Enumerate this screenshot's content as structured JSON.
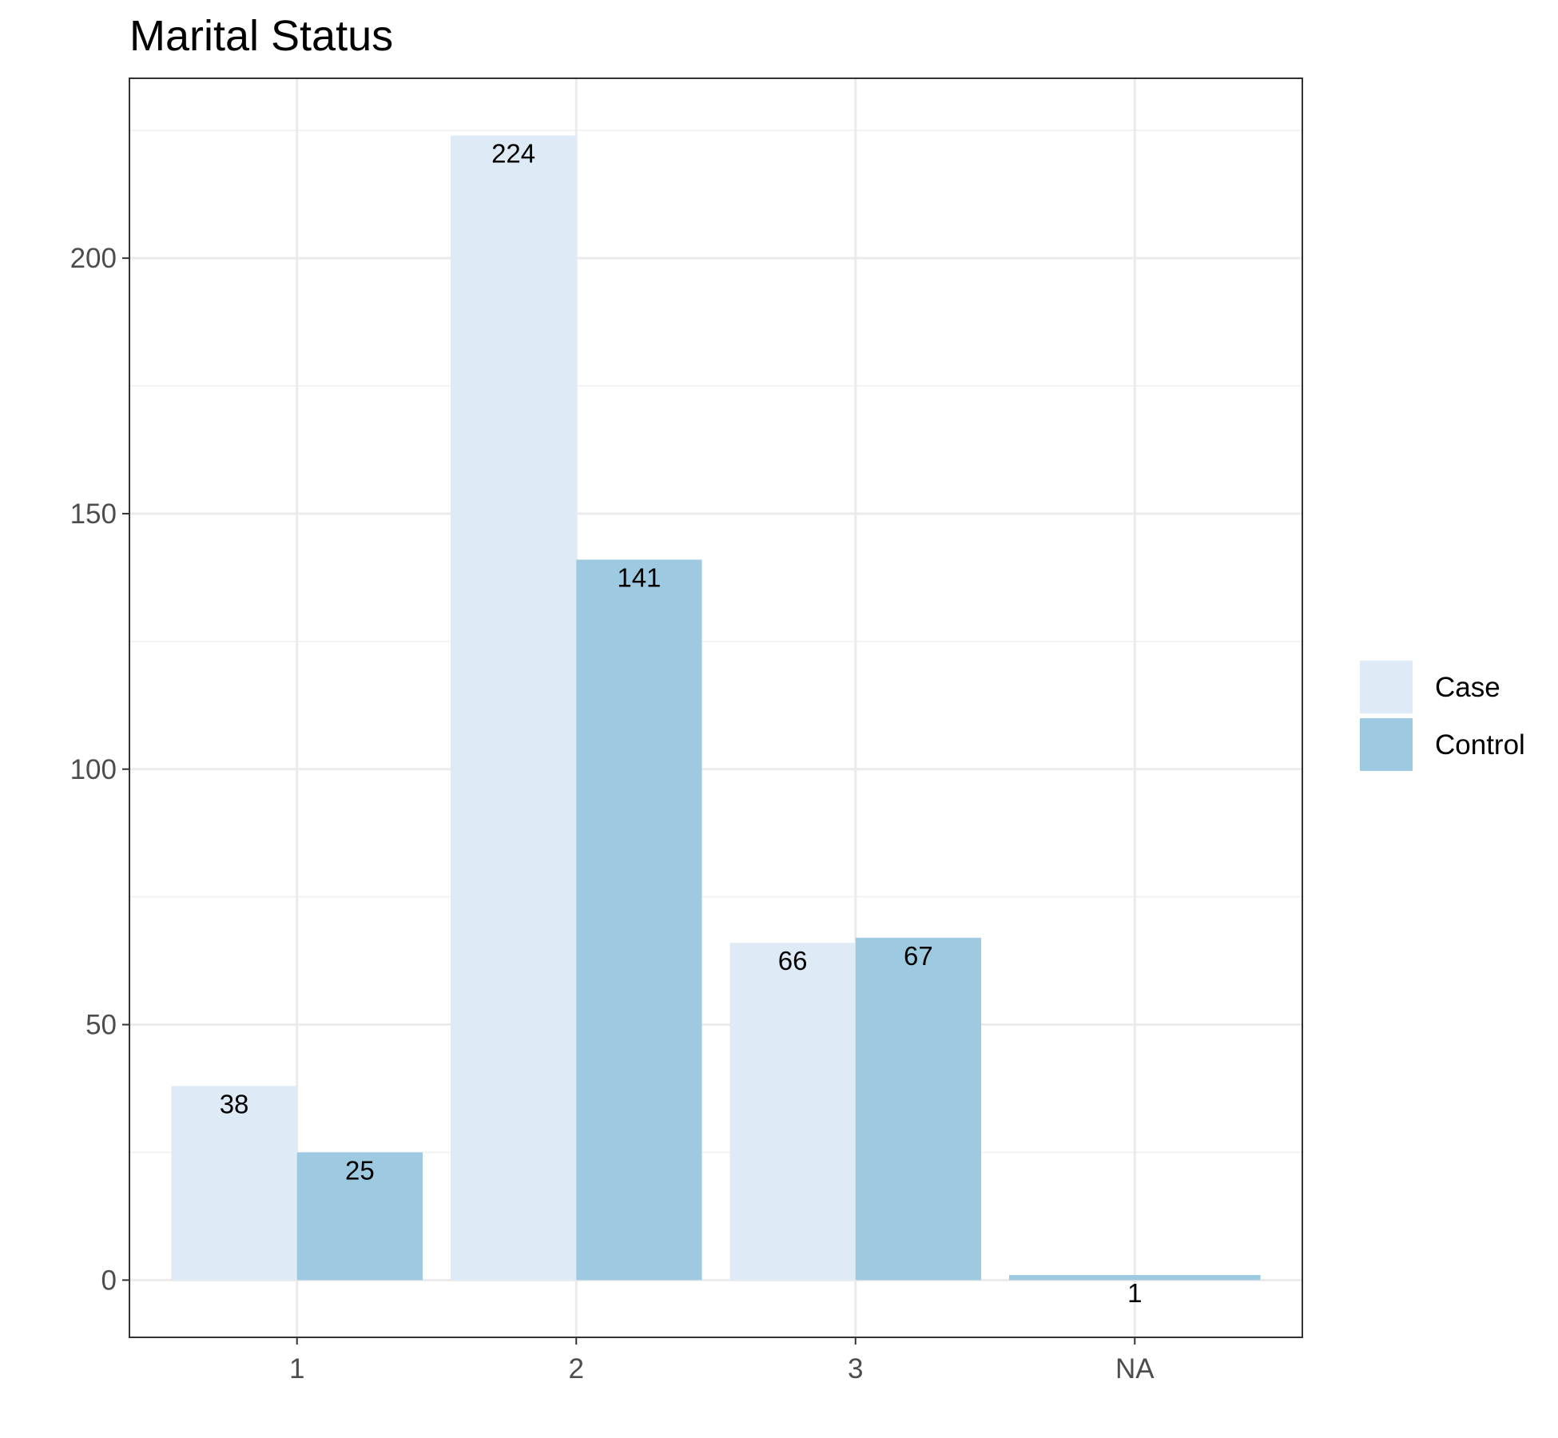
{
  "chart_data": {
    "type": "bar",
    "title": "Marital Status",
    "xlabel": "",
    "ylabel": "",
    "categories": [
      "1",
      "2",
      "3",
      "NA"
    ],
    "series": [
      {
        "name": "Case",
        "values": [
          38,
          224,
          66,
          null
        ],
        "color": "#deebf7"
      },
      {
        "name": "Control",
        "values": [
          25,
          141,
          67,
          1
        ],
        "color": "#9ecae1"
      }
    ],
    "ylim": [
      -11.2,
      235.2
    ],
    "yticks": [
      0,
      50,
      100,
      150,
      200
    ],
    "grid": true,
    "legend_position": "right",
    "bar_layout": "dodged"
  }
}
